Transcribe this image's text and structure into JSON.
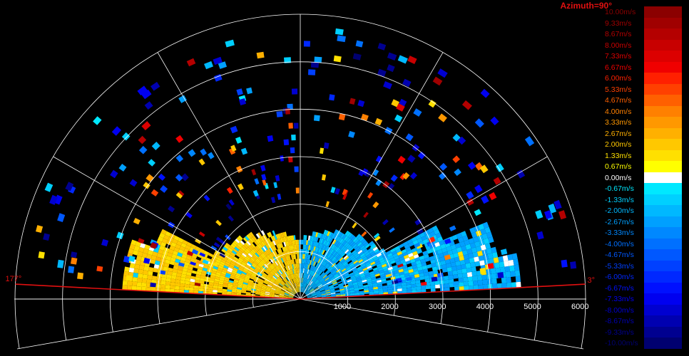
{
  "chart_data": {
    "type": "heatmap",
    "title": "Azimuth=90°",
    "projection": "polar half-plane (range-elevation scan)",
    "range_ring_labels": [
      "1000",
      "2000",
      "3000",
      "4000",
      "5000",
      "6000"
    ],
    "range_rings": [
      1000,
      2000,
      3000,
      4000,
      5000,
      6000
    ],
    "max_range": 6000,
    "spoke_angles_deg": [
      0,
      30,
      60,
      90,
      120,
      150,
      180
    ],
    "scan_limits": [
      {
        "label": "3°",
        "angle_deg": 3,
        "color": "#e01010"
      },
      {
        "label": "177°",
        "angle_deg": 177,
        "color": "#e01010"
      }
    ],
    "colorbar": {
      "unit": "m/s",
      "labels": [
        "10.00m/s",
        "9.33m/s",
        "8.67m/s",
        "8.00m/s",
        "7.33m/s",
        "6.67m/s",
        "6.00m/s",
        "5.33m/s",
        "4.67m/s",
        "4.00m/s",
        "3.33m/s",
        "2.67m/s",
        "2.00m/s",
        "1.33m/s",
        "0.67m/s",
        "0.00m/s",
        "-0.67m/s",
        "-1.33m/s",
        "-2.00m/s",
        "-2.67m/s",
        "-3.33m/s",
        "-4.00m/s",
        "-4.67m/s",
        "-5.33m/s",
        "-6.00m/s",
        "-6.67m/s",
        "-7.33m/s",
        "-8.00m/s",
        "-8.67m/s",
        "-9.33m/s",
        "-10.00m/s"
      ],
      "colors": [
        "#8b0000",
        "#a00000",
        "#b40000",
        "#c80000",
        "#dc0000",
        "#f00000",
        "#ff2000",
        "#ff4000",
        "#ff6000",
        "#ff8000",
        "#ff9800",
        "#ffb000",
        "#ffc800",
        "#ffe000",
        "#ffff00",
        "#ffffff",
        "#00e8ff",
        "#00d0ff",
        "#00b8ff",
        "#00a0ff",
        "#0088ff",
        "#0070ff",
        "#0058ff",
        "#0040ff",
        "#0028ff",
        "#0010ff",
        "#0000f0",
        "#0000d0",
        "#0000b0",
        "#000090",
        "#000070"
      ]
    },
    "velocity_fields": [
      {
        "region": "near-range left half (90°–177°)",
        "typical_velocity_m_s": 2.0,
        "range_m": [
          200,
          3600
        ]
      },
      {
        "region": "near-range right half (3°–90°)",
        "typical_velocity_m_s": -2.3,
        "range_m": [
          200,
          4500
        ]
      },
      {
        "region": "scattered far-range gates",
        "velocity_m_s_range": [
          -10.0,
          10.0
        ],
        "range_m": [
          1800,
          6000
        ]
      }
    ]
  }
}
